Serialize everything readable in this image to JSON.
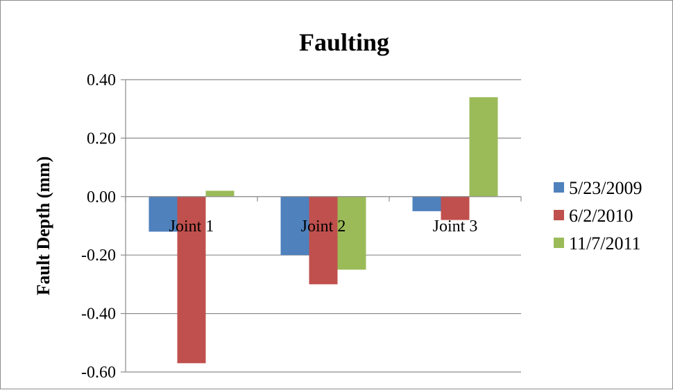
{
  "chart_data": {
    "type": "bar",
    "title": "Faulting",
    "xlabel": "",
    "ylabel": "Fault Depth (mm)",
    "categories": [
      "Joint 1",
      "Joint 2",
      "Joint 3"
    ],
    "series": [
      {
        "name": "5/23/2009",
        "color": "#4f81bd",
        "values": [
          -0.12,
          -0.2,
          -0.05
        ]
      },
      {
        "name": "6/2/2010",
        "color": "#c0504d",
        "values": [
          -0.57,
          -0.3,
          -0.08
        ]
      },
      {
        "name": "11/7/2011",
        "color": "#9bbb59",
        "values": [
          0.02,
          -0.25,
          0.34
        ]
      }
    ],
    "ylim": [
      -0.6,
      0.4
    ],
    "yticks": [
      0.4,
      0.2,
      0.0,
      -0.2,
      -0.4,
      -0.6
    ],
    "ytick_labels": [
      "0.40",
      "0.20",
      "0.00",
      "-0.20",
      "-0.40",
      "-0.60"
    ],
    "grid": true,
    "legend_position": "right"
  }
}
